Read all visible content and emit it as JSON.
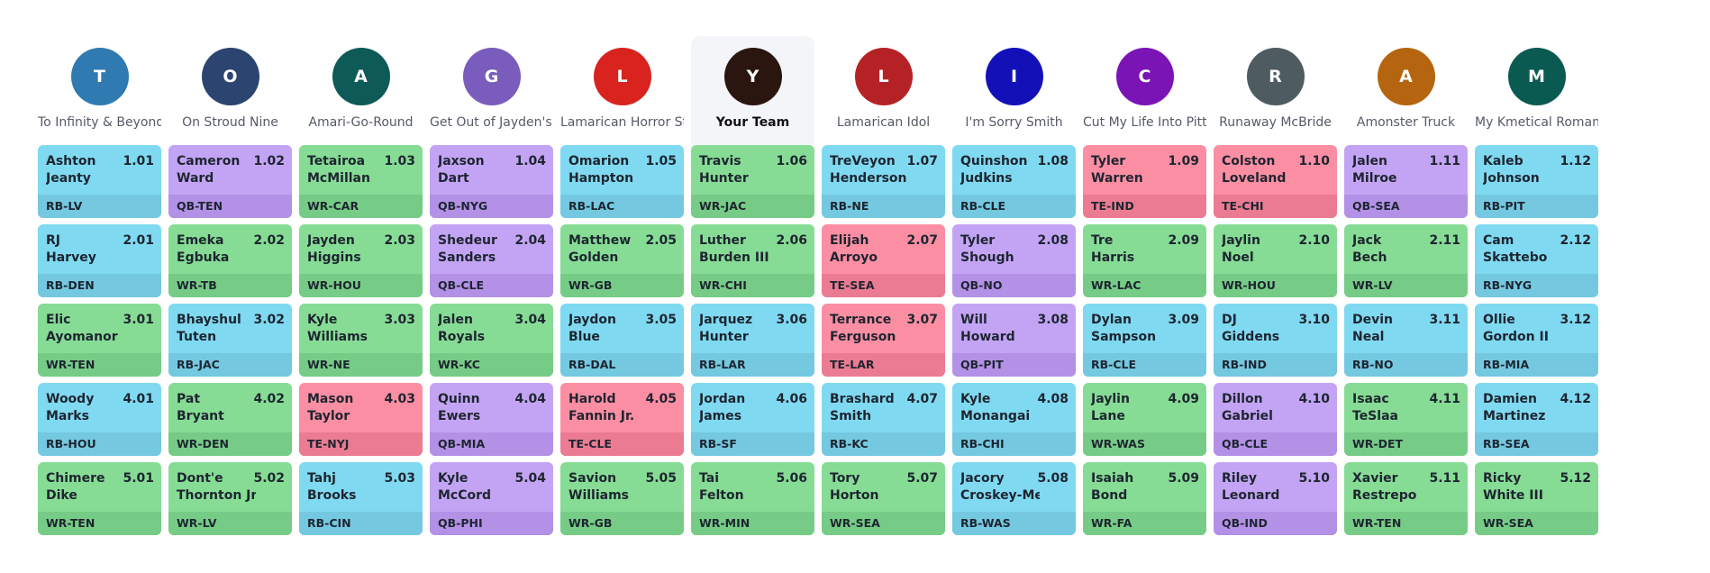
{
  "colors": {
    "RB": "#7fd9f1",
    "QB": "#c3a4f4",
    "WR": "#86dc95",
    "TE": "#fc8ea3"
  },
  "teams": [
    {
      "initial": "T",
      "name": "To Infinity & Beyond",
      "color": "#2f7ab0",
      "current": false,
      "picks": [
        {
          "first": "Ashton",
          "last": "Jeanty",
          "pick": "1.01",
          "pos": "RB",
          "team": "LV"
        },
        {
          "first": "RJ",
          "last": "Harvey",
          "pick": "2.01",
          "pos": "RB",
          "team": "DEN"
        },
        {
          "first": "Elic",
          "last": "Ayomanor",
          "pick": "3.01",
          "pos": "WR",
          "team": "TEN"
        },
        {
          "first": "Woody",
          "last": "Marks",
          "pick": "4.01",
          "pos": "RB",
          "team": "HOU"
        },
        {
          "first": "Chimere",
          "last": "Dike",
          "pick": "5.01",
          "pos": "WR",
          "team": "TEN"
        }
      ]
    },
    {
      "initial": "O",
      "name": "On Stroud Nine",
      "color": "#2c4470",
      "current": false,
      "picks": [
        {
          "first": "Cameron",
          "last": "Ward",
          "pick": "1.02",
          "pos": "QB",
          "team": "TEN"
        },
        {
          "first": "Emeka",
          "last": "Egbuka",
          "pick": "2.02",
          "pos": "WR",
          "team": "TB"
        },
        {
          "first": "Bhayshul",
          "last": "Tuten",
          "pick": "3.02",
          "pos": "RB",
          "team": "JAC"
        },
        {
          "first": "Pat",
          "last": "Bryant",
          "pick": "4.02",
          "pos": "WR",
          "team": "DEN"
        },
        {
          "first": "Dont'e",
          "last": "Thornton Jr.",
          "pick": "5.02",
          "pos": "WR",
          "team": "LV"
        }
      ]
    },
    {
      "initial": "A",
      "name": "Amari-Go-Round",
      "color": "#0d5a57",
      "current": false,
      "picks": [
        {
          "first": "Tetairoa",
          "last": "McMillan",
          "pick": "1.03",
          "pos": "WR",
          "team": "CAR"
        },
        {
          "first": "Jayden",
          "last": "Higgins",
          "pick": "2.03",
          "pos": "WR",
          "team": "HOU"
        },
        {
          "first": "Kyle",
          "last": "Williams",
          "pick": "3.03",
          "pos": "WR",
          "team": "NE"
        },
        {
          "first": "Mason",
          "last": "Taylor",
          "pick": "4.03",
          "pos": "TE",
          "team": "NYJ"
        },
        {
          "first": "Tahj",
          "last": "Brooks",
          "pick": "5.03",
          "pos": "RB",
          "team": "CIN"
        }
      ]
    },
    {
      "initial": "G",
      "name": "Get Out of Jayden's Way",
      "color": "#7a5cbd",
      "current": false,
      "picks": [
        {
          "first": "Jaxson",
          "last": "Dart",
          "pick": "1.04",
          "pos": "QB",
          "team": "NYG"
        },
        {
          "first": "Shedeur",
          "last": "Sanders",
          "pick": "2.04",
          "pos": "QB",
          "team": "CLE"
        },
        {
          "first": "Jalen",
          "last": "Royals",
          "pick": "3.04",
          "pos": "WR",
          "team": "KC"
        },
        {
          "first": "Quinn",
          "last": "Ewers",
          "pick": "4.04",
          "pos": "QB",
          "team": "MIA"
        },
        {
          "first": "Kyle",
          "last": "McCord",
          "pick": "5.04",
          "pos": "QB",
          "team": "PHI"
        }
      ]
    },
    {
      "initial": "L",
      "name": "Lamarican Horror Story",
      "color": "#d9231f",
      "current": false,
      "picks": [
        {
          "first": "Omarion",
          "last": "Hampton",
          "pick": "1.05",
          "pos": "RB",
          "team": "LAC"
        },
        {
          "first": "Matthew",
          "last": "Golden",
          "pick": "2.05",
          "pos": "WR",
          "team": "GB"
        },
        {
          "first": "Jaydon",
          "last": "Blue",
          "pick": "3.05",
          "pos": "RB",
          "team": "DAL"
        },
        {
          "first": "Harold",
          "last": "Fannin Jr.",
          "pick": "4.05",
          "pos": "TE",
          "team": "CLE"
        },
        {
          "first": "Savion",
          "last": "Williams",
          "pick": "5.05",
          "pos": "WR",
          "team": "GB"
        }
      ]
    },
    {
      "initial": "Y",
      "name": "Your Team",
      "color": "#2a150f",
      "current": true,
      "picks": [
        {
          "first": "Travis",
          "last": "Hunter",
          "pick": "1.06",
          "pos": "WR",
          "team": "JAC"
        },
        {
          "first": "Luther",
          "last": "Burden III",
          "pick": "2.06",
          "pos": "WR",
          "team": "CHI"
        },
        {
          "first": "Jarquez",
          "last": "Hunter",
          "pick": "3.06",
          "pos": "RB",
          "team": "LAR"
        },
        {
          "first": "Jordan",
          "last": "James",
          "pick": "4.06",
          "pos": "RB",
          "team": "SF"
        },
        {
          "first": "Tai",
          "last": "Felton",
          "pick": "5.06",
          "pos": "WR",
          "team": "MIN"
        }
      ]
    },
    {
      "initial": "L",
      "name": "Lamarican Idol",
      "color": "#b52226",
      "current": false,
      "picks": [
        {
          "first": "TreVeyon",
          "last": "Henderson",
          "pick": "1.07",
          "pos": "RB",
          "team": "NE"
        },
        {
          "first": "Elijah",
          "last": "Arroyo",
          "pick": "2.07",
          "pos": "TE",
          "team": "SEA"
        },
        {
          "first": "Terrance",
          "last": "Ferguson",
          "pick": "3.07",
          "pos": "TE",
          "team": "LAR"
        },
        {
          "first": "Brashard",
          "last": "Smith",
          "pick": "4.07",
          "pos": "RB",
          "team": "KC"
        },
        {
          "first": "Tory",
          "last": "Horton",
          "pick": "5.07",
          "pos": "WR",
          "team": "SEA"
        }
      ]
    },
    {
      "initial": "I",
      "name": "I'm Sorry Smith",
      "color": "#1410b8",
      "current": false,
      "picks": [
        {
          "first": "Quinshon",
          "last": "Judkins",
          "pick": "1.08",
          "pos": "RB",
          "team": "CLE"
        },
        {
          "first": "Tyler",
          "last": "Shough",
          "pick": "2.08",
          "pos": "QB",
          "team": "NO"
        },
        {
          "first": "Will",
          "last": "Howard",
          "pick": "3.08",
          "pos": "QB",
          "team": "PIT"
        },
        {
          "first": "Kyle",
          "last": "Monangai",
          "pick": "4.08",
          "pos": "RB",
          "team": "CHI"
        },
        {
          "first": "Jacory",
          "last": "Croskey-Merritt",
          "pick": "5.08",
          "pos": "RB",
          "team": "WAS"
        }
      ]
    },
    {
      "initial": "C",
      "name": "Cut My Life Into Pitts",
      "color": "#7a14b5",
      "current": false,
      "picks": [
        {
          "first": "Tyler",
          "last": "Warren",
          "pick": "1.09",
          "pos": "TE",
          "team": "IND"
        },
        {
          "first": "Tre",
          "last": "Harris",
          "pick": "2.09",
          "pos": "WR",
          "team": "LAC"
        },
        {
          "first": "Dylan",
          "last": "Sampson",
          "pick": "3.09",
          "pos": "RB",
          "team": "CLE"
        },
        {
          "first": "Jaylin",
          "last": "Lane",
          "pick": "4.09",
          "pos": "WR",
          "team": "WAS"
        },
        {
          "first": "Isaiah",
          "last": "Bond",
          "pick": "5.09",
          "pos": "WR",
          "team": "FA"
        }
      ]
    },
    {
      "initial": "R",
      "name": "Runaway McBride",
      "color": "#4e5b60",
      "current": false,
      "picks": [
        {
          "first": "Colston",
          "last": "Loveland",
          "pick": "1.10",
          "pos": "TE",
          "team": "CHI"
        },
        {
          "first": "Jaylin",
          "last": "Noel",
          "pick": "2.10",
          "pos": "WR",
          "team": "HOU"
        },
        {
          "first": "DJ",
          "last": "Giddens",
          "pick": "3.10",
          "pos": "RB",
          "team": "IND"
        },
        {
          "first": "Dillon",
          "last": "Gabriel",
          "pick": "4.10",
          "pos": "QB",
          "team": "CLE"
        },
        {
          "first": "Riley",
          "last": "Leonard",
          "pick": "5.10",
          "pos": "QB",
          "team": "IND"
        }
      ]
    },
    {
      "initial": "A",
      "name": "Amonster Truck",
      "color": "#b5650f",
      "current": false,
      "picks": [
        {
          "first": "Jalen",
          "last": "Milroe",
          "pick": "1.11",
          "pos": "QB",
          "team": "SEA"
        },
        {
          "first": "Jack",
          "last": "Bech",
          "pick": "2.11",
          "pos": "WR",
          "team": "LV"
        },
        {
          "first": "Devin",
          "last": "Neal",
          "pick": "3.11",
          "pos": "RB",
          "team": "NO"
        },
        {
          "first": "Isaac",
          "last": "TeSlaa",
          "pick": "4.11",
          "pos": "WR",
          "team": "DET"
        },
        {
          "first": "Xavier",
          "last": "Restrepo",
          "pick": "5.11",
          "pos": "WR",
          "team": "TEN"
        }
      ]
    },
    {
      "initial": "M",
      "name": "My Kmetical Romance",
      "color": "#0b5a52",
      "current": false,
      "picks": [
        {
          "first": "Kaleb",
          "last": "Johnson",
          "pick": "1.12",
          "pos": "RB",
          "team": "PIT"
        },
        {
          "first": "Cam",
          "last": "Skattebo",
          "pick": "2.12",
          "pos": "RB",
          "team": "NYG"
        },
        {
          "first": "Ollie",
          "last": "Gordon II",
          "pick": "3.12",
          "pos": "RB",
          "team": "MIA"
        },
        {
          "first": "Damien",
          "last": "Martinez",
          "pick": "4.12",
          "pos": "RB",
          "team": "SEA"
        },
        {
          "first": "Ricky",
          "last": "White III",
          "pick": "5.12",
          "pos": "WR",
          "team": "SEA"
        }
      ]
    }
  ]
}
